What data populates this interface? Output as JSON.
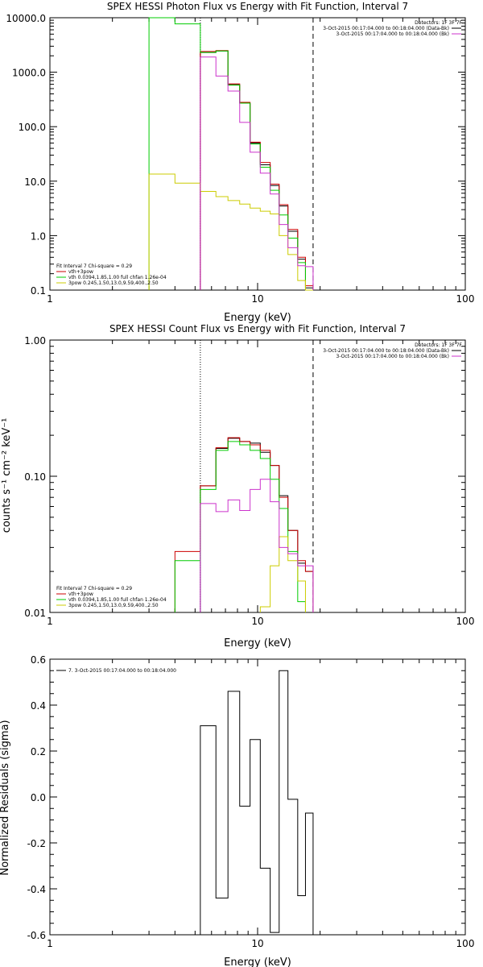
{
  "chart_data": [
    {
      "type": "line",
      "title": "SPEX HESSI Photon Flux vs Energy with Fit Function, Interval 7",
      "xlabel": "Energy (keV)",
      "ylabel": "",
      "xscale": "log",
      "yscale": "log",
      "xlim": [
        1,
        100
      ],
      "ylim": [
        0.1,
        10000.0
      ],
      "xticks": [
        "1",
        "10",
        "100"
      ],
      "yticks": [
        "0.1",
        "1.0",
        "10.0",
        "100.0",
        "1000.0",
        "10000.0"
      ],
      "grid": false,
      "legend_top": {
        "header": "Detectors: 1F 3F 7F",
        "entries": [
          {
            "label": "3-Oct-2015 00:17:04.000 to 00:18:04.000 (Data-Bk)",
            "color": "#000000"
          },
          {
            "label": "3-Oct-2015 00:17:04.000 to 00:18:04.000 (Bk)",
            "color": "#cc33cc"
          }
        ]
      },
      "legend_bottom": {
        "header": "Fit Interval 7   Chi-square = 0.29",
        "entries": [
          {
            "label": "vth+3pow",
            "color": "#cc0000"
          },
          {
            "label": "vth 0.0394,1.85,1.00  full chfan 1.26e-04",
            "color": "#00cc00"
          },
          {
            "label": "3pow 0.245,1.50,13.0,9.59,400.,2.50",
            "color": "#cccc00"
          }
        ]
      },
      "vlines_dotted": [
        5.3
      ],
      "vlines_dashed": [
        18.5
      ],
      "edges": [
        3.0,
        4.0,
        5.3,
        6.3,
        7.2,
        8.2,
        9.2,
        10.3,
        11.5,
        12.7,
        14.0,
        15.6,
        17.0,
        18.5
      ],
      "series": [
        {
          "name": "Data-Bk",
          "color": "#000000",
          "values": [
            null,
            null,
            2300,
            2450,
            590,
            270,
            50,
            20,
            8.3,
            3.5,
            1.2,
            0.37,
            0.11
          ]
        },
        {
          "name": "vth+3pow",
          "color": "#cc0000",
          "values": [
            null,
            null,
            2400,
            2500,
            610,
            280,
            52,
            22,
            8.8,
            3.7,
            1.3,
            0.4,
            0.12
          ]
        },
        {
          "name": "vth",
          "color": "#00cc00",
          "values": [
            10000,
            7700,
            2300,
            2450,
            580,
            270,
            48,
            18,
            6.8,
            2.4,
            0.9,
            0.32,
            0.1
          ]
        },
        {
          "name": "3pow",
          "color": "#cccc00",
          "values": [
            13.5,
            9.2,
            6.5,
            5.2,
            4.4,
            3.8,
            3.2,
            2.8,
            2.5,
            1.0,
            0.45,
            0.15,
            0.1
          ]
        },
        {
          "name": "Bk",
          "color": "#cc33cc",
          "values": [
            null,
            null,
            1900,
            850,
            450,
            120,
            34,
            14,
            5.8,
            1.6,
            0.6,
            0.28,
            0.27
          ]
        }
      ]
    },
    {
      "type": "line",
      "title": "SPEX HESSI Count Flux vs Energy with Fit Function, Interval 7",
      "xlabel": "Energy (keV)",
      "ylabel": "counts s⁻¹ cm⁻² keV⁻¹",
      "xscale": "log",
      "yscale": "log",
      "xlim": [
        1,
        100
      ],
      "ylim": [
        0.01,
        1.0
      ],
      "xticks": [
        "1",
        "10",
        "100"
      ],
      "yticks": [
        "0.01",
        "0.10",
        "1.00"
      ],
      "grid": false,
      "legend_top": {
        "header": "Detectors: 1F 3F 7F",
        "entries": [
          {
            "label": "3-Oct-2015 00:17:04.000 to 00:18:04.000 (Data-Bk)",
            "color": "#000000"
          },
          {
            "label": "3-Oct-2015 00:17:04.000 to 00:18:04.000 (Bk)",
            "color": "#cc33cc"
          }
        ]
      },
      "legend_bottom": {
        "header": "Fit Interval 7   Chi-square = 0.29",
        "entries": [
          {
            "label": "vth+3pow",
            "color": "#cc0000"
          },
          {
            "label": "vth 0.0394,1.85,1.00  full chfan 1.26e-04",
            "color": "#00cc00"
          },
          {
            "label": "3pow 0.245,1.50,13.0,9.59,400.,2.50",
            "color": "#cccc00"
          }
        ]
      },
      "vlines_dotted": [
        5.3
      ],
      "vlines_dashed": [
        18.5
      ],
      "edges": [
        3.0,
        4.0,
        5.3,
        6.3,
        7.2,
        8.2,
        9.2,
        10.3,
        11.5,
        12.7,
        14.0,
        15.6,
        17.0,
        18.5
      ],
      "series": [
        {
          "name": "Data-Bk",
          "color": "#000000",
          "values": [
            null,
            null,
            0.085,
            0.16,
            0.19,
            0.18,
            0.175,
            0.15,
            0.12,
            0.072,
            0.04,
            0.023,
            0.02
          ]
        },
        {
          "name": "vth+3pow",
          "color": "#cc0000",
          "values": [
            null,
            0.028,
            0.085,
            0.162,
            0.192,
            0.18,
            0.17,
            0.155,
            0.12,
            0.07,
            0.04,
            0.024,
            0.02
          ]
        },
        {
          "name": "vth",
          "color": "#00cc00",
          "values": [
            null,
            0.024,
            0.08,
            0.155,
            0.18,
            0.17,
            0.155,
            0.135,
            0.095,
            0.058,
            0.028,
            0.012,
            null
          ]
        },
        {
          "name": "3pow",
          "color": "#cccc00",
          "values": [
            null,
            null,
            null,
            null,
            null,
            null,
            null,
            0.011,
            0.022,
            0.036,
            0.024,
            0.017,
            null
          ]
        },
        {
          "name": "Bk",
          "color": "#cc33cc",
          "values": [
            null,
            null,
            0.063,
            0.055,
            0.067,
            0.056,
            0.08,
            0.095,
            0.065,
            0.03,
            0.027,
            0.022,
            0.022
          ]
        }
      ]
    },
    {
      "type": "line",
      "title": "",
      "xlabel": "Energy (keV)",
      "ylabel": "Normalized Residuals (sigma)",
      "xscale": "log",
      "yscale": "linear",
      "xlim": [
        1,
        100
      ],
      "ylim": [
        -0.6,
        0.6
      ],
      "xticks": [
        "1",
        "10",
        "100"
      ],
      "yticks": [
        "-0.6",
        "-0.4",
        "-0.2",
        "0.0",
        "0.2",
        "0.4",
        "0.6"
      ],
      "grid": false,
      "legend_top": {
        "header": "",
        "entries": [
          {
            "label": "7.  3-Oct-2015 00:17:04.000 to 00:18:04.000",
            "color": "#000000"
          }
        ]
      },
      "edges": [
        5.3,
        6.3,
        7.2,
        8.2,
        9.2,
        10.3,
        11.5,
        12.7,
        14.0,
        15.6,
        17.0,
        18.5
      ],
      "series": [
        {
          "name": "",
          "color": "#000000",
          "values": [
            0.31,
            -0.44,
            0.46,
            -0.04,
            0.25,
            -0.31,
            -0.59,
            0.55,
            -0.01,
            -0.43,
            -0.07
          ]
        }
      ]
    }
  ]
}
